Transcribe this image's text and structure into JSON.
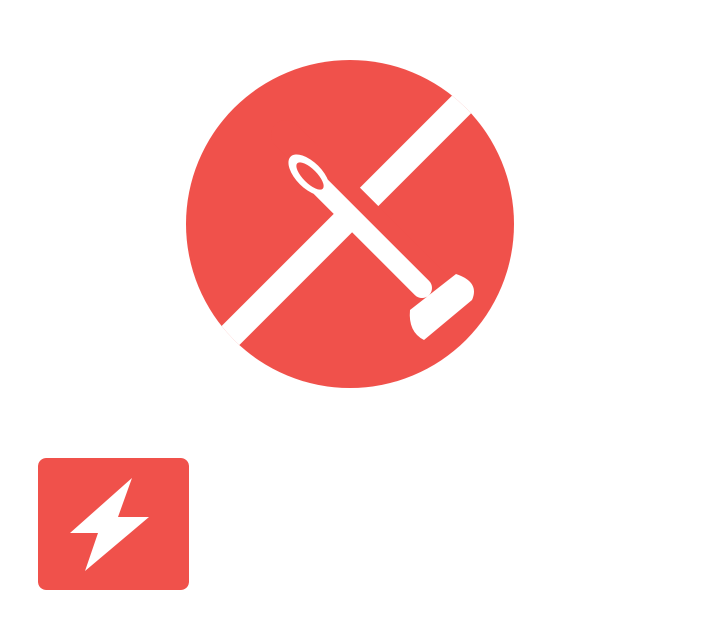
{
  "logo": {
    "icon": "glider-icon",
    "color": "#f0514b",
    "foreground": "#ffffff"
  },
  "badge": {
    "icon": "lightning-bolt-icon",
    "color": "#f0514b",
    "foreground": "#ffffff"
  }
}
